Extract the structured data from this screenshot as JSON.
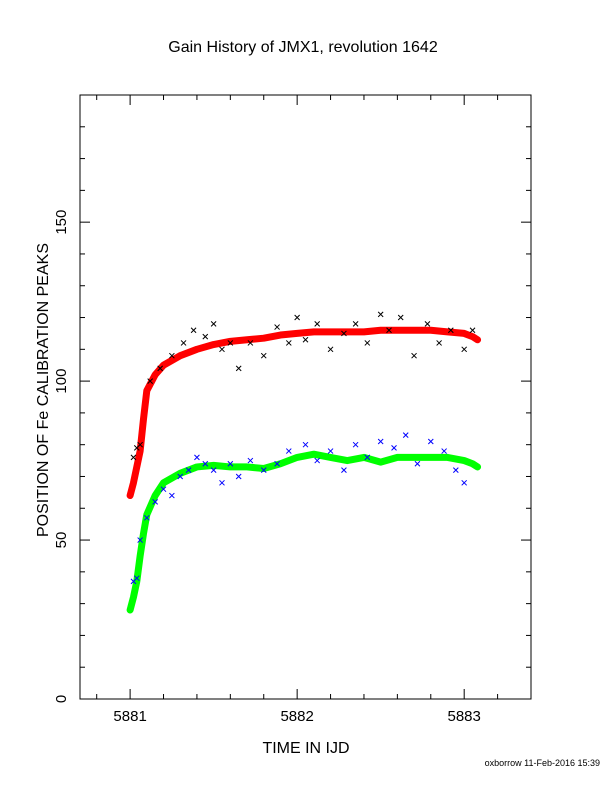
{
  "chart_data": {
    "type": "scatter",
    "title": "Gain History of JMX1, revolution 1642",
    "xlabel": "TIME IN IJD",
    "ylabel": "POSITION OF Fe CALIBRATION PEAKS",
    "xlim": [
      5880.7,
      5883.4
    ],
    "ylim": [
      0,
      190
    ],
    "x_ticks": [
      "5881",
      "5882",
      "5883"
    ],
    "y_ticks": [
      "0",
      "50",
      "100",
      "150"
    ],
    "footer": "oxborrow 11-Feb-2016 15:39",
    "colors": {
      "red": "#ff0000",
      "green": "#00ff00",
      "black": "#000000",
      "blue": "#0000ff"
    },
    "series": [
      {
        "role": "fit",
        "color": "red",
        "marker": "+",
        "x": [
          5881.0,
          5881.02,
          5881.04,
          5881.06,
          5881.08,
          5881.1,
          5881.15,
          5881.2,
          5881.3,
          5881.4,
          5881.5,
          5881.6,
          5881.7,
          5881.8,
          5881.9,
          5882.0,
          5882.1,
          5882.2,
          5882.3,
          5882.4,
          5882.5,
          5882.6,
          5882.7,
          5882.8,
          5882.9,
          5883.0,
          5883.05,
          5883.08
        ],
        "y": [
          64,
          68,
          73,
          78,
          88,
          97,
          102,
          105,
          108,
          110,
          111.5,
          112.5,
          113,
          113.5,
          114.5,
          115,
          115.5,
          115.5,
          115.5,
          115.5,
          116,
          116,
          116,
          116,
          115.5,
          115,
          114,
          113
        ]
      },
      {
        "role": "fit",
        "color": "green",
        "marker": "+",
        "x": [
          5881.0,
          5881.02,
          5881.04,
          5881.06,
          5881.08,
          5881.1,
          5881.15,
          5881.2,
          5881.3,
          5881.4,
          5881.5,
          5881.6,
          5881.7,
          5881.8,
          5881.9,
          5882.0,
          5882.1,
          5882.2,
          5882.3,
          5882.4,
          5882.5,
          5882.6,
          5882.7,
          5882.8,
          5882.9,
          5883.0,
          5883.05,
          5883.08
        ],
        "y": [
          28,
          32,
          37,
          45,
          52,
          58,
          64,
          68,
          71,
          73,
          73.5,
          73,
          73,
          72.5,
          74,
          76,
          77,
          76,
          75,
          76,
          74.5,
          76,
          76,
          76,
          76,
          75,
          74,
          73
        ]
      },
      {
        "role": "measurements",
        "color": "black",
        "marker": "x",
        "x": [
          5881.02,
          5881.04,
          5881.06,
          5881.12,
          5881.18,
          5881.25,
          5881.32,
          5881.38,
          5881.45,
          5881.5,
          5881.55,
          5881.6,
          5881.65,
          5881.72,
          5881.8,
          5881.88,
          5881.95,
          5882.0,
          5882.05,
          5882.12,
          5882.2,
          5882.28,
          5882.35,
          5882.42,
          5882.5,
          5882.55,
          5882.62,
          5882.7,
          5882.78,
          5882.85,
          5882.92,
          5883.0,
          5883.05
        ],
        "y": [
          76,
          79,
          80,
          100,
          104,
          108,
          112,
          116,
          114,
          118,
          110,
          112,
          104,
          112,
          108,
          117,
          112,
          120,
          113,
          118,
          110,
          115,
          118,
          112,
          121,
          116,
          120,
          108,
          118,
          112,
          116,
          110,
          116
        ]
      },
      {
        "role": "measurements",
        "color": "blue",
        "marker": "x",
        "x": [
          5881.02,
          5881.04,
          5881.06,
          5881.1,
          5881.15,
          5881.2,
          5881.25,
          5881.3,
          5881.35,
          5881.4,
          5881.45,
          5881.5,
          5881.55,
          5881.6,
          5881.65,
          5881.72,
          5881.8,
          5881.88,
          5881.95,
          5882.05,
          5882.12,
          5882.2,
          5882.28,
          5882.35,
          5882.42,
          5882.5,
          5882.58,
          5882.65,
          5882.72,
          5882.8,
          5882.88,
          5882.95,
          5883.0
        ],
        "y": [
          37,
          38,
          50,
          57,
          62,
          66,
          64,
          70,
          72,
          76,
          74,
          72,
          68,
          74,
          70,
          75,
          72,
          74,
          78,
          80,
          75,
          78,
          72,
          80,
          76,
          81,
          79,
          83,
          74,
          81,
          78,
          72,
          68
        ]
      }
    ]
  }
}
